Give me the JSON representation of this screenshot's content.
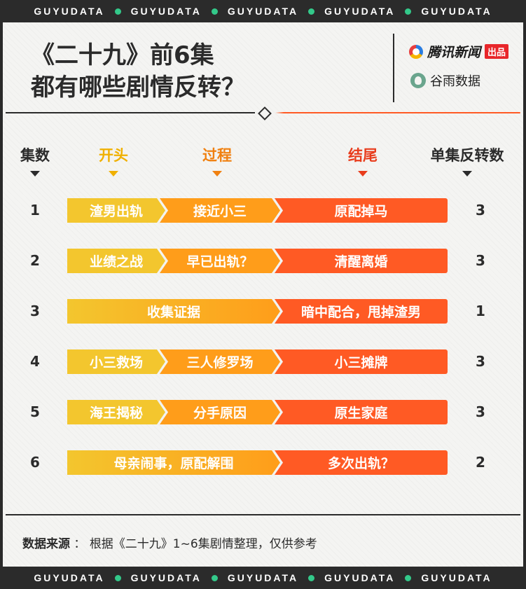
{
  "banner": {
    "word": "GUYUDATA",
    "repeat": 5
  },
  "title": {
    "line1": "《二十九》前6集",
    "line2": "都有哪些剧情反转？"
  },
  "logos": {
    "tencent": "腾讯新闻",
    "tencent_badge": "出品",
    "guyu": "谷雨数据"
  },
  "headers": {
    "episode": "集数",
    "start": "开头",
    "middle": "过程",
    "end": "结尾",
    "count": "单集反转数"
  },
  "rows": [
    {
      "ep": "1",
      "start": "渣男出轨",
      "middle": "接近小三",
      "end": "原配掉马",
      "count": "3"
    },
    {
      "ep": "2",
      "start": "业绩之战",
      "middle": "早已出轨？",
      "end": "清醒离婚",
      "count": "3"
    },
    {
      "ep": "3",
      "startmiddle": "收集证据",
      "end": "暗中配合，甩掉渣男",
      "count": "1"
    },
    {
      "ep": "4",
      "start": "小三救场",
      "middle": "三人修罗场",
      "end": "小三摊牌",
      "count": "3"
    },
    {
      "ep": "5",
      "start": "海王揭秘",
      "middle": "分手原因",
      "end": "原生家庭",
      "count": "3"
    },
    {
      "ep": "6",
      "startmiddle": "母亲闹事，原配解围",
      "end": "多次出轨？",
      "count": "2"
    }
  ],
  "footer": {
    "label": "数据来源",
    "sep": "：",
    "text": "根据《二十九》1~6集剧情整理，仅供参考"
  },
  "colors": {
    "yellow": "#f3c62e",
    "orange": "#ff9d1a",
    "red": "#ff5a24",
    "dark": "#2b2b2b",
    "green_dot": "#33c98a"
  }
}
